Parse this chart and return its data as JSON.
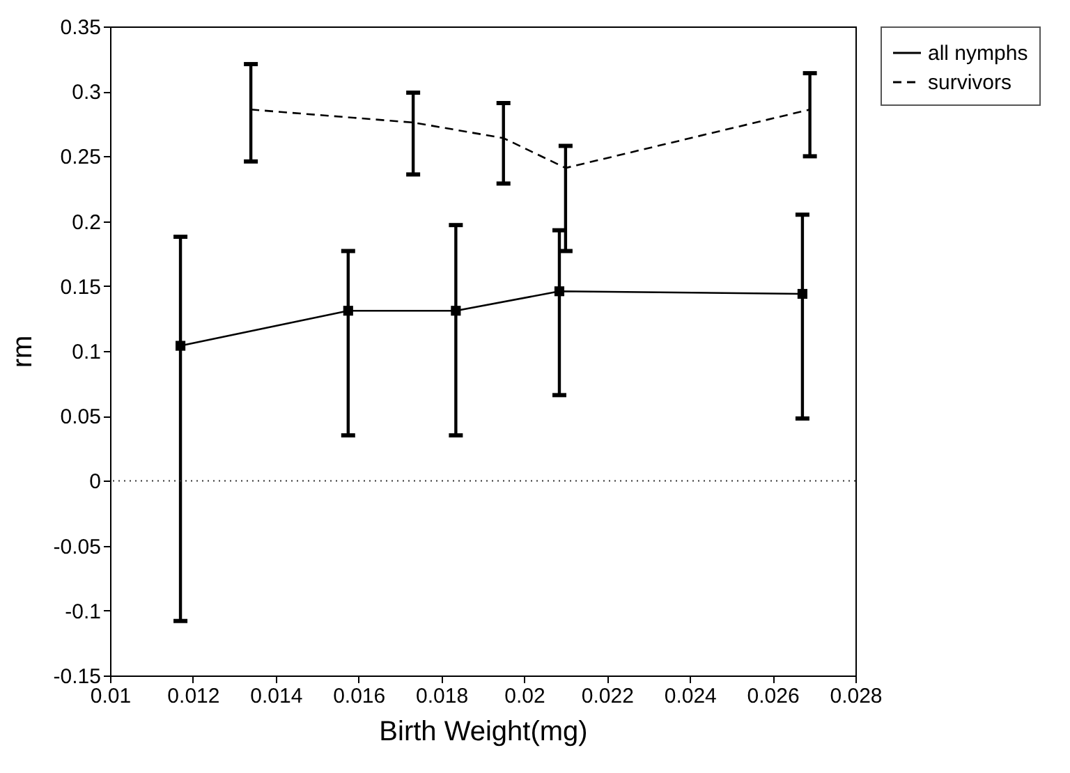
{
  "chart_data": {
    "type": "line",
    "xlabel": "Birth Weight(mg)",
    "ylabel": "rm",
    "xlim": [
      0.01,
      0.028
    ],
    "xticks": [
      {
        "value": 0.01,
        "label": "0.01"
      },
      {
        "value": 0.012,
        "label": "0.012"
      },
      {
        "value": 0.014,
        "label": "0.014"
      },
      {
        "value": 0.016,
        "label": "0.016"
      },
      {
        "value": 0.018,
        "label": "0.018"
      },
      {
        "value": 0.02,
        "label": "0.02"
      },
      {
        "value": 0.022,
        "label": "0.022"
      },
      {
        "value": 0.024,
        "label": "0.024"
      },
      {
        "value": 0.026,
        "label": "0.026"
      },
      {
        "value": 0.028,
        "label": "0.028"
      }
    ],
    "ylim": [
      -0.15,
      0.35
    ],
    "yticks": [
      {
        "value": -0.15,
        "label": "-0.15"
      },
      {
        "value": -0.1,
        "label": "-0.1"
      },
      {
        "value": -0.05,
        "label": "-0.05"
      },
      {
        "value": 0,
        "label": "0"
      },
      {
        "value": 0.05,
        "label": "0.05"
      },
      {
        "value": 0.1,
        "label": "0.1"
      },
      {
        "value": 0.15,
        "label": "0.15"
      },
      {
        "value": 0.2,
        "label": "0.2"
      },
      {
        "value": 0.25,
        "label": "0.25"
      },
      {
        "value": 0.3,
        "label": "0.3"
      },
      {
        "value": 0.35,
        "label": "0.35"
      }
    ],
    "grid": false,
    "legend": "top right",
    "ref_lines": [
      {
        "axis": "y",
        "value": 0,
        "line_style": "dotted",
        "color": "#333333"
      }
    ],
    "series": [
      {
        "name": "all nymphs",
        "color": "#000000",
        "marker": "square",
        "line_style": "solid",
        "x": [
          0.0117,
          0.01575,
          0.01835,
          0.02085,
          0.02672
        ],
        "values": [
          0.104,
          0.131,
          0.131,
          0.146,
          0.144
        ],
        "errors": [
          [
            -0.108,
            0.188
          ],
          [
            0.035,
            0.177
          ],
          [
            0.035,
            0.197
          ],
          [
            0.066,
            0.193
          ],
          [
            0.048,
            0.205
          ]
        ]
      },
      {
        "name": "survivors",
        "color": "#000000",
        "marker": "none",
        "line_style": "dashed",
        "x": [
          0.0134,
          0.01732,
          0.0195,
          0.021,
          0.0269
        ],
        "values": [
          0.286,
          0.276,
          0.264,
          0.241,
          0.286
        ],
        "errors": [
          [
            0.246,
            0.321
          ],
          [
            0.236,
            0.299
          ],
          [
            0.229,
            0.291
          ],
          [
            0.177,
            0.258
          ],
          [
            0.25,
            0.314
          ]
        ]
      }
    ]
  }
}
